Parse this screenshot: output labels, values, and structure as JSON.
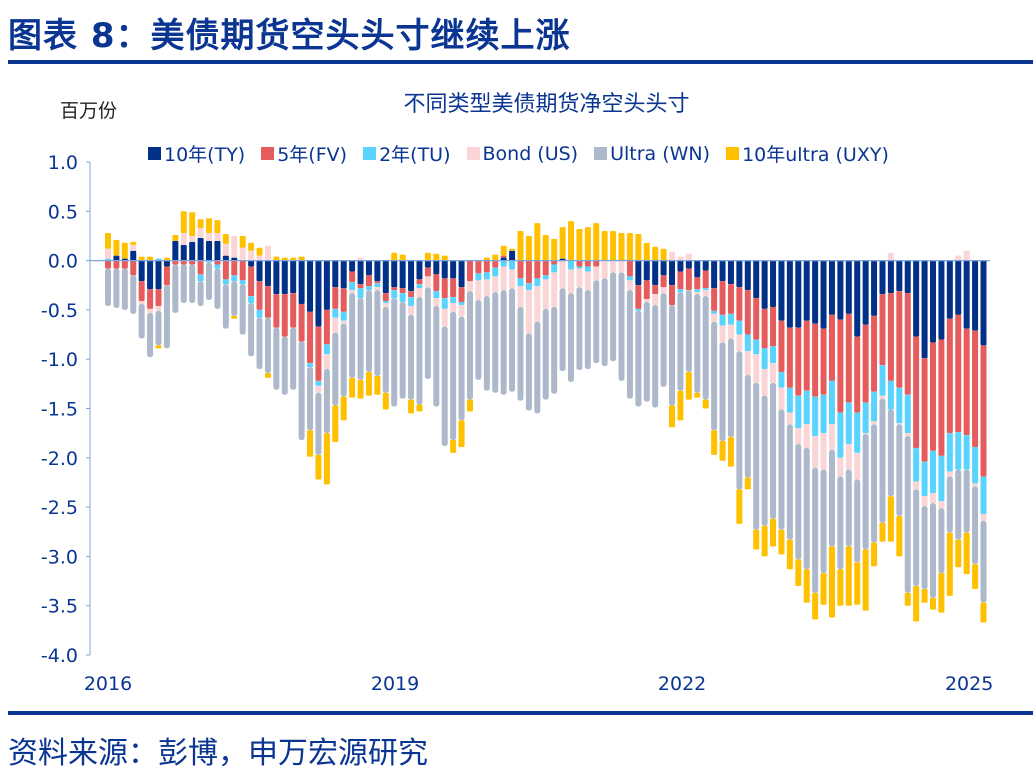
{
  "header": {
    "title": "图表 8：美债期货空头头寸继续上涨"
  },
  "footer": {
    "source": "资料来源：彭博，申万宏源研究"
  },
  "chart_data": {
    "type": "bar",
    "stacked": true,
    "title": "不同类型美债期货净空头头寸",
    "ylabel": "百万份",
    "ylim": [
      -4.0,
      1.0
    ],
    "y_ticks": [
      "1.0",
      "0.5",
      "0.0",
      "-0.5",
      "-1.0",
      "-1.5",
      "-2.0",
      "-2.5",
      "-3.0",
      "-3.5",
      "-4.0"
    ],
    "x_ticks": [
      "2016",
      "2019",
      "2022",
      "2025"
    ],
    "x_range_years": [
      2016.0,
      2025.15
    ],
    "grid": false,
    "legend_position": "top",
    "series": [
      {
        "name": "10年(TY)",
        "color": "#003087",
        "values": [
          0,
          0.05,
          0.02,
          0.1,
          -0.21,
          -0.29,
          -0.29,
          -0.06,
          0.2,
          0.16,
          0.19,
          0.23,
          0.2,
          0.2,
          0.05,
          0.03,
          0,
          -0.06,
          -0.21,
          -0.26,
          -0.34,
          -0.34,
          -0.33,
          -0.44,
          -0.52,
          -0.67,
          -0.5,
          -0.27,
          -0.28,
          -0.11,
          -0.24,
          -0.15,
          -0.21,
          -0.33,
          -0.27,
          -0.28,
          -0.31,
          -0.19,
          -0.07,
          -0.14,
          -0.18,
          -0.18,
          -0.27,
          0,
          0,
          0,
          0,
          0.03,
          0.1,
          0,
          0,
          0,
          0,
          0,
          0.02,
          0,
          0,
          0,
          0,
          0,
          0,
          0,
          0,
          -0.25,
          -0.2,
          -0.25,
          -0.15,
          -0.25,
          -0.11,
          -0.08,
          -0.17,
          -0.1,
          -0.28,
          -0.21,
          -0.24,
          -0.27,
          -0.3,
          -0.38,
          -0.49,
          -0.47,
          -0.61,
          -0.68,
          -0.68,
          -0.61,
          -0.64,
          -0.69,
          -0.55,
          -0.6,
          -0.54,
          -0.77,
          -0.65,
          -0.56,
          -0.34,
          -0.33,
          -0.31,
          -0.33,
          -0.77,
          -0.99,
          -0.83,
          -0.8,
          -0.59,
          -0.55,
          -0.69,
          -0.71,
          -0.86
        ]
      },
      {
        "name": "5年(FV)",
        "color": "#e65c5c",
        "values": [
          -0.08,
          -0.08,
          -0.08,
          -0.15,
          -0.2,
          -0.2,
          -0.17,
          -0.19,
          -0.04,
          -0.04,
          -0.04,
          -0.14,
          0,
          -0.04,
          -0.19,
          -0.15,
          -0.2,
          -0.3,
          -0.29,
          -0.32,
          -0.34,
          -0.43,
          -0.35,
          -0.38,
          -0.52,
          -0.55,
          -0.35,
          -0.22,
          -0.24,
          -0.11,
          -0.04,
          -0.11,
          -0.02,
          -0.08,
          -0.03,
          -0.05,
          -0.06,
          -0.05,
          -0.09,
          -0.17,
          -0.2,
          -0.19,
          -0.15,
          -0.21,
          -0.13,
          -0.12,
          -0.07,
          0.02,
          0,
          -0.18,
          -0.23,
          -0.18,
          -0.15,
          -0.04,
          0,
          0,
          -0.06,
          -0.06,
          -0.06,
          0,
          0,
          0,
          -0.16,
          -0.24,
          -0.19,
          -0.09,
          -0.12,
          -0.2,
          -0.18,
          -0.22,
          -0.12,
          -0.18,
          -0.23,
          -0.34,
          -0.3,
          -0.34,
          -0.45,
          -0.42,
          -0.4,
          -0.4,
          -0.52,
          -0.61,
          -0.69,
          -0.71,
          -0.74,
          -0.67,
          -0.67,
          -0.94,
          -0.9,
          -0.77,
          -0.79,
          -0.77,
          -0.72,
          -0.89,
          -0.98,
          -1.03,
          -1.13,
          -1.05,
          -1.1,
          -1.18,
          -1.16,
          -1.19,
          -1.08,
          -1.18,
          -1.33
        ]
      },
      {
        "name": "2年(TU)",
        "color": "#5bd3ff",
        "values": [
          0.02,
          0,
          0,
          0,
          0,
          0,
          0.02,
          0,
          0,
          0,
          0,
          -0.07,
          -0.02,
          -0.04,
          -0.05,
          -0.06,
          -0.04,
          -0.07,
          -0.08,
          0,
          0,
          0,
          0,
          0,
          -0.04,
          -0.05,
          -0.1,
          -0.09,
          -0.09,
          -0.08,
          -0.1,
          -0.04,
          -0.04,
          -0.02,
          -0.08,
          -0.09,
          -0.09,
          -0.04,
          0,
          -0.07,
          -0.11,
          -0.06,
          -0.03,
          0,
          -0.07,
          -0.07,
          -0.09,
          -0.06,
          -0.09,
          -0.08,
          -0.07,
          -0.08,
          -0.04,
          -0.08,
          0,
          -0.09,
          -0.02,
          -0.05,
          0,
          0,
          0,
          0,
          -0.04,
          -0.02,
          0,
          0,
          0,
          0,
          -0.03,
          0,
          -0.03,
          -0.02,
          -0.03,
          -0.11,
          -0.11,
          -0.14,
          -0.17,
          -0.15,
          -0.21,
          -0.17,
          -0.16,
          -0.25,
          -0.33,
          -0.34,
          -0.4,
          -0.39,
          -0.44,
          -0.46,
          -0.42,
          -0.41,
          -0.31,
          -0.3,
          -0.31,
          -0.29,
          -0.36,
          -0.39,
          -0.34,
          -0.35,
          -0.43,
          -0.46,
          -0.39,
          -0.38,
          -0.35,
          -0.37,
          -0.38
        ]
      },
      {
        "name": "Bond (US)",
        "color": "#fbd5d5",
        "values": [
          0.1,
          0,
          0,
          0.06,
          -0.03,
          -0.04,
          -0.05,
          0,
          0,
          0.12,
          0.06,
          0.1,
          0.08,
          0.08,
          0.12,
          0.22,
          0.13,
          0.1,
          0.05,
          0.15,
          0,
          0,
          0,
          0,
          0,
          -0.07,
          -0.15,
          -0.15,
          -0.03,
          -0.03,
          0.03,
          0,
          -0.03,
          -0.04,
          0,
          0,
          -0.09,
          -0.09,
          -0.11,
          -0.08,
          -0.18,
          -0.09,
          -0.12,
          -0.1,
          -0.2,
          -0.17,
          -0.16,
          -0.24,
          -0.19,
          -0.21,
          -0.44,
          -0.36,
          -0.3,
          -0.35,
          -0.28,
          -0.24,
          -0.19,
          -0.19,
          -0.14,
          -0.18,
          -0.12,
          -0.12,
          -0.1,
          0,
          -0.03,
          -0.11,
          -0.06,
          0.09,
          0.04,
          0.07,
          -0.02,
          -0.06,
          -0.08,
          -0.17,
          -0.14,
          -0.17,
          -0.24,
          -0.29,
          -0.27,
          -0.2,
          -0.22,
          -0.12,
          -0.16,
          -0.24,
          -0.32,
          -0.37,
          -0.26,
          -0.19,
          -0.26,
          -0.27,
          -0.01,
          -0.03,
          -0.03,
          0.08,
          -0.01,
          -0.03,
          -0.08,
          -0.1,
          -0.1,
          -0.07,
          -0.05,
          0.05,
          0.1,
          -0.03,
          -0.07
        ]
      },
      {
        "name": "Ultra (WN)",
        "color": "#adb9ca",
        "values": [
          -0.38,
          -0.4,
          -0.42,
          -0.39,
          -0.35,
          -0.45,
          -0.35,
          -0.64,
          -0.49,
          -0.39,
          -0.39,
          -0.25,
          -0.38,
          -0.41,
          -0.45,
          -0.35,
          -0.51,
          -0.54,
          -0.52,
          -0.56,
          -0.63,
          -0.59,
          -0.63,
          -1.0,
          -0.64,
          -0.63,
          -0.65,
          -0.74,
          -0.74,
          -0.86,
          -0.83,
          -0.83,
          -0.87,
          -0.87,
          -1.1,
          -0.98,
          -0.86,
          -1.09,
          -0.93,
          -1.02,
          -1.21,
          -1.3,
          -1.05,
          -1.1,
          -0.81,
          -0.96,
          -1.02,
          -1.06,
          -1.05,
          -0.95,
          -0.78,
          -0.93,
          -0.92,
          -0.88,
          -0.84,
          -0.9,
          -0.84,
          -0.8,
          -0.84,
          -0.89,
          -0.9,
          -1.1,
          -1.1,
          -0.97,
          -1.01,
          -1.04,
          -0.95,
          -1.02,
          -1.0,
          -0.83,
          -1.0,
          -1.05,
          -1.1,
          -1.0,
          -1.0,
          -1.4,
          -1.04,
          -1.49,
          -1.32,
          -1.38,
          -1.22,
          -1.17,
          -1.17,
          -1.23,
          -1.27,
          -1.05,
          -0.98,
          -0.94,
          -0.78,
          -0.84,
          -1.17,
          -1.2,
          -1.26,
          -0.88,
          -0.93,
          -1.59,
          -0.98,
          -0.84,
          -0.96,
          -0.66,
          -0.57,
          -0.71,
          -0.64,
          -0.79,
          -0.83
        ]
      },
      {
        "name": "10年ultra (UXY)",
        "color": "#ffc000",
        "values": [
          0.16,
          0.16,
          0.16,
          0.03,
          0.04,
          0.04,
          -0.03,
          0.03,
          0.06,
          0.22,
          0.24,
          0.09,
          0.15,
          0.13,
          0.1,
          -0.03,
          0.12,
          0.08,
          0.08,
          -0.05,
          0.04,
          0.03,
          0.03,
          0.04,
          -0.27,
          -0.25,
          -0.52,
          -0.37,
          -0.24,
          -0.2,
          -0.19,
          -0.24,
          -0.19,
          -0.17,
          0.08,
          0.06,
          -0.14,
          -0.07,
          0.08,
          0.07,
          0.05,
          -0.13,
          -0.27,
          -0.12,
          0,
          0.03,
          0.06,
          0.1,
          0.02,
          0.3,
          0.25,
          0.38,
          0.26,
          0.22,
          0.32,
          0.4,
          0.32,
          0.34,
          0.38,
          0.3,
          0.3,
          0.28,
          0.28,
          0.27,
          0.18,
          0.14,
          0.12,
          -0.22,
          -0.3,
          -0.28,
          -0.05,
          -0.09,
          -0.25,
          -0.2,
          -0.3,
          -0.35,
          -0.12,
          -0.2,
          -0.31,
          -0.28,
          -0.25,
          -0.3,
          -0.27,
          -0.34,
          -0.27,
          -0.32,
          -0.72,
          -0.37,
          -0.6,
          -0.43,
          -0.62,
          -0.24,
          -0.19,
          -0.46,
          -0.41,
          -0.13,
          -0.36,
          -0.14,
          -0.12,
          -0.4,
          -0.64,
          -0.28,
          -0.42,
          -0.25,
          -0.2
        ]
      }
    ]
  },
  "colors": {
    "brand": "#0a3592",
    "axis": "#7fa6dc"
  }
}
